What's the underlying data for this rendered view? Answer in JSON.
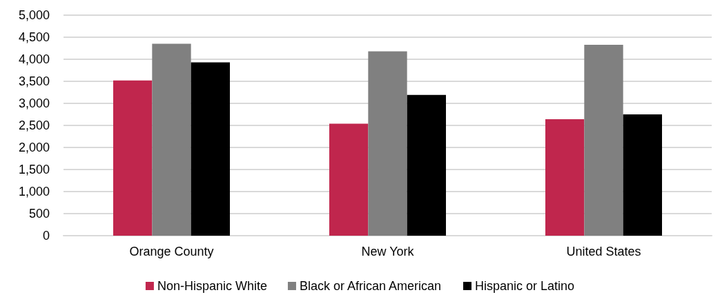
{
  "chart_data": {
    "type": "bar",
    "categories": [
      "Orange County",
      "New York",
      "United States"
    ],
    "series": [
      {
        "name": "Non-Hispanic White",
        "color": "#c0264d",
        "values": [
          3520,
          2540,
          2640
        ]
      },
      {
        "name": "Black or African American",
        "color": "#808080",
        "values": [
          4350,
          4180,
          4330
        ]
      },
      {
        "name": "Hispanic or Latino",
        "color": "#000000",
        "values": [
          3930,
          3190,
          2750
        ]
      }
    ],
    "ylim": [
      0,
      5000
    ],
    "yticks": [
      0,
      500,
      {
        "value": 1000,
        "label": "1,000"
      },
      {
        "value": 1500,
        "label": "1,500"
      },
      {
        "value": 2000,
        "label": "2,000"
      },
      {
        "value": 2500,
        "label": "2,500"
      },
      {
        "value": 3000,
        "label": "3,000"
      },
      {
        "value": 3500,
        "label": "3,500"
      },
      {
        "value": 4000,
        "label": "4,000"
      },
      {
        "value": 4500,
        "label": "4,500"
      },
      {
        "value": 5000,
        "label": "5,000"
      }
    ],
    "grid": "y",
    "legend": "bottom"
  }
}
